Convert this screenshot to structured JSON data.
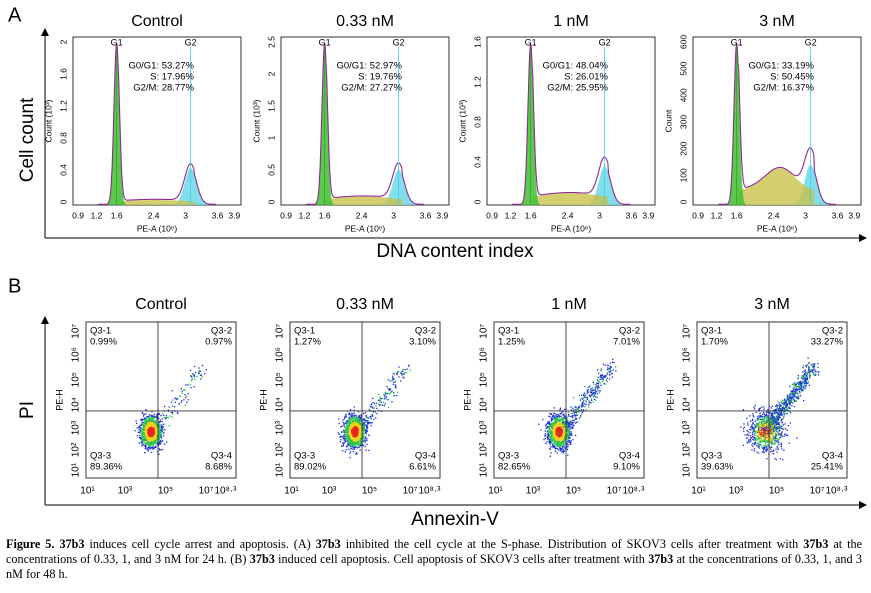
{
  "panel_a": {
    "label": "A",
    "y_axis_title": "Cell count",
    "x_axis_title": "DNA content index",
    "x_ticks": [
      "0.9",
      "1.2",
      "1.6",
      "2.4",
      "3",
      "3.6",
      "3.9"
    ],
    "x_label": "PE-A (10⁶)",
    "peak_labels": [
      "G1",
      "G2"
    ],
    "plots": [
      {
        "title": "Control",
        "y_label": "Count (10³)",
        "y_ticks": [
          "0",
          "0.4",
          "0.8",
          "1.2",
          "1.6",
          "2"
        ],
        "stats": [
          "G0/G1: 53.27%",
          "S: 17.96%",
          "G2/M: 28.77%"
        ]
      },
      {
        "title": "0.33 nM",
        "y_label": "Count (10³)",
        "y_ticks": [
          "0",
          "0.5",
          "1",
          "1.5",
          "2",
          "2.5"
        ],
        "stats": [
          "G0/G1: 52.97%",
          "S: 19.76%",
          "G2/M: 27.27%"
        ]
      },
      {
        "title": "1 nM",
        "y_label": "Count (10³)",
        "y_ticks": [
          "0",
          "0.4",
          "0.8",
          "1.2",
          "1.6"
        ],
        "stats": [
          "G0/G1: 48.04%",
          "S: 26.01%",
          "G2/M: 25.95%"
        ]
      },
      {
        "title": "3 nM",
        "y_label": "Count",
        "y_ticks": [
          "0",
          "100",
          "200",
          "300",
          "400",
          "500",
          "600"
        ],
        "stats": [
          "G0/G1: 33.19%",
          "S: 50.45%",
          "G2/M: 16.37%"
        ]
      }
    ]
  },
  "panel_b": {
    "label": "B",
    "y_axis_title": "PI",
    "x_axis_title": "Annexin-V",
    "y_label": "PE-H",
    "x_ticks": [
      "10¹",
      "10³",
      "10⁵",
      "10⁷",
      "10⁸·³"
    ],
    "y_ticks": [
      "10¹",
      "10²",
      "10³",
      "10⁴",
      "10⁵",
      "10⁶",
      "10⁷"
    ],
    "plots": [
      {
        "title": "Control",
        "quadrants": [
          {
            "name": "Q3-1",
            "value": "0.99%"
          },
          {
            "name": "Q3-2",
            "value": "0.97%"
          },
          {
            "name": "Q3-3",
            "value": "89.36%"
          },
          {
            "name": "Q3-4",
            "value": "8.68%"
          }
        ]
      },
      {
        "title": "0.33 nM",
        "quadrants": [
          {
            "name": "Q3-1",
            "value": "1.27%"
          },
          {
            "name": "Q3-2",
            "value": "3.10%"
          },
          {
            "name": "Q3-3",
            "value": "89.02%"
          },
          {
            "name": "Q3-4",
            "value": "6.61%"
          }
        ]
      },
      {
        "title": "1 nM",
        "quadrants": [
          {
            "name": "Q3-1",
            "value": "1.25%"
          },
          {
            "name": "Q3-2",
            "value": "7.01%"
          },
          {
            "name": "Q3-3",
            "value": "82.65%"
          },
          {
            "name": "Q3-4",
            "value": "9.10%"
          }
        ]
      },
      {
        "title": "3 nM",
        "quadrants": [
          {
            "name": "Q3-1",
            "value": "1.70%"
          },
          {
            "name": "Q3-2",
            "value": "33.27%"
          },
          {
            "name": "Q3-3",
            "value": "39.63%"
          },
          {
            "name": "Q3-4",
            "value": "25.41%"
          }
        ]
      }
    ]
  },
  "caption": [
    "Figure 5. ",
    "37b3",
    " induces cell cycle arrest and apoptosis. (A) ",
    "37b3",
    " inhibited the cell cycle at the S-phase. Distribution of SKOV3 cells after treatment with ",
    "37b3",
    " at the concentrations of 0.33, 1, and 3 nM for 24 h. (B) ",
    "37b3",
    " induced cell apoptosis. Cell apoptosis of SKOV3 cells after treatment with ",
    "37b3",
    " at the concentrations of 0.33, 1, and 3 nM for 48 h."
  ]
}
